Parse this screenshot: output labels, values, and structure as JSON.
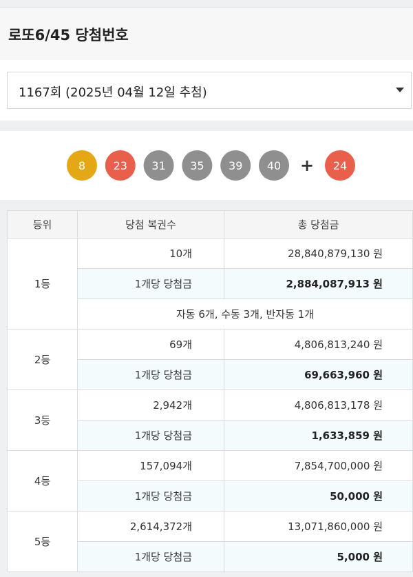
{
  "header": {
    "title": "로또6/45 당첨번호"
  },
  "select": {
    "label": "1167회 (2025년 04월 12일 추첨)"
  },
  "balls": {
    "numbers": [
      8,
      23,
      31,
      35,
      39,
      40
    ],
    "colors": [
      "#e4a716",
      "#e8604c",
      "#8f8f8f",
      "#8f8f8f",
      "#8f8f8f",
      "#8f8f8f"
    ],
    "plus": "+",
    "bonus": 24,
    "bonus_color": "#e8604c"
  },
  "table": {
    "headers": [
      "등위",
      "당첨 복권수",
      "총 당첨금"
    ],
    "rows": [
      {
        "rank": "1등",
        "count": "10개",
        "total": "28,840,879,130 원",
        "per_label": "1개당 당첨금",
        "per": "2,884,087,913 원",
        "note": "자동 6개, 수동 3개, 반자동 1개"
      },
      {
        "rank": "2등",
        "count": "69개",
        "total": "4,806,813,240 원",
        "per_label": "1개당 당첨금",
        "per": "69,663,960 원"
      },
      {
        "rank": "3등",
        "count": "2,942개",
        "total": "4,806,813,178 원",
        "per_label": "1개당 당첨금",
        "per": "1,633,859 원"
      },
      {
        "rank": "4등",
        "count": "157,094개",
        "total": "7,854,700,000 원",
        "per_label": "1개당 당첨금",
        "per": "50,000 원"
      },
      {
        "rank": "5등",
        "count": "2,614,372개",
        "total": "13,071,860,000 원",
        "per_label": "1개당 당첨금",
        "per": "5,000 원"
      }
    ]
  }
}
